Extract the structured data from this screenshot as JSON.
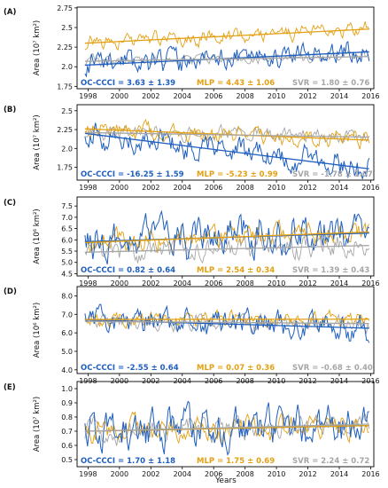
{
  "colors": {
    "OC-CCCI": "#1f5fbf",
    "MLP": "#e3a012",
    "SVR": "#a6a6a6"
  },
  "xlabel": "Years",
  "chart_data": [
    {
      "type": "line",
      "panel": "(A)",
      "ylabel": "Area (10⁷ km²)",
      "xlim": [
        1997.3,
        2016.2
      ],
      "ylim": [
        1.72,
        2.76
      ],
      "yticks": [
        "1.75",
        "2.0",
        "2.25",
        "2.5",
        "2.75"
      ],
      "yticks_val": [
        1.75,
        2.0,
        2.25,
        2.5,
        2.75
      ],
      "xticks": [
        "1998",
        "2000",
        "2002",
        "2004",
        "2006",
        "2008",
        "2010",
        "2012",
        "2014",
        "2016"
      ],
      "series": [
        {
          "name": "OC-CCCI",
          "annotation": "OC-CCCI = 3.63 ± 1.39",
          "trend": [
            2.02,
            2.19
          ],
          "base": 2.05,
          "amp": 0.11,
          "seed": 11
        },
        {
          "name": "MLP",
          "annotation": "MLP = 4.43 ± 1.06",
          "trend": [
            2.3,
            2.48
          ],
          "base": 2.33,
          "amp": 0.07,
          "seed": 23
        },
        {
          "name": "SVR",
          "annotation": "SVR = 1.80 ± 0.76",
          "trend": [
            2.07,
            2.13
          ],
          "base": 2.05,
          "amp": 0.05,
          "seed": 37
        }
      ]
    },
    {
      "type": "line",
      "panel": "(B)",
      "ylabel": "Area (10⁷ km²)",
      "xlim": [
        1997.3,
        2016.2
      ],
      "ylim": [
        1.58,
        2.58
      ],
      "yticks": [
        "1.75",
        "2.0",
        "2.25",
        "2.5"
      ],
      "yticks_val": [
        1.75,
        2.0,
        2.25,
        2.5
      ],
      "xticks": [
        "1998",
        "2000",
        "2002",
        "2004",
        "2006",
        "2008",
        "2010",
        "2012",
        "2014",
        "2016"
      ],
      "series": [
        {
          "name": "OC-CCCI",
          "annotation": "OC-CCCI = -16.25 ± 1.59",
          "trend": [
            2.2,
            1.73
          ],
          "base": 2.05,
          "amp": 0.13,
          "seed": 41
        },
        {
          "name": "MLP",
          "annotation": "MLP = -5.23 ± 0.99",
          "trend": [
            2.26,
            2.11
          ],
          "base": 2.15,
          "amp": 0.08,
          "seed": 53
        },
        {
          "name": "SVR",
          "annotation": "SVR = -1.78 ± 1.07",
          "trend": [
            2.21,
            2.15
          ],
          "base": 2.12,
          "amp": 0.07,
          "seed": 67
        }
      ]
    },
    {
      "type": "line",
      "panel": "(C)",
      "ylabel": "Area (10⁶ km²)",
      "xlim": [
        1997.3,
        2016.2
      ],
      "ylim": [
        4.4,
        7.9
      ],
      "yticks": [
        "4.5",
        "5.0",
        "5.5",
        "6.0",
        "6.5",
        "7.0",
        "7.5"
      ],
      "yticks_val": [
        4.5,
        5.0,
        5.5,
        6.0,
        6.5,
        7.0,
        7.5
      ],
      "xticks": [
        "1998",
        "2000",
        "2002",
        "2004",
        "2006",
        "2008",
        "2010",
        "2012",
        "2014",
        "2016"
      ],
      "series": [
        {
          "name": "OC-CCCI",
          "annotation": "OC-CCCI = 0.82 ± 0.64",
          "trend": [
            5.92,
            6.3
          ],
          "base": 6.0,
          "amp": 0.65,
          "seed": 71
        },
        {
          "name": "MLP",
          "annotation": "MLP = 2.54 ± 0.34",
          "trend": [
            5.88,
            6.35
          ],
          "base": 6.0,
          "amp": 0.35,
          "seed": 83
        },
        {
          "name": "SVR",
          "annotation": "SVR = 1.39 ± 0.43",
          "trend": [
            5.45,
            5.75
          ],
          "base": 5.55,
          "amp": 0.35,
          "seed": 97
        }
      ]
    },
    {
      "type": "line",
      "panel": "(D)",
      "ylabel": "Area (10⁶ km²)",
      "xlim": [
        1997.3,
        2016.2
      ],
      "ylim": [
        3.8,
        8.5
      ],
      "yticks": [
        "4.0",
        "5.0",
        "6.0",
        "7.0",
        "8.0"
      ],
      "yticks_val": [
        4.0,
        5.0,
        6.0,
        7.0,
        8.0
      ],
      "xticks": [
        "1998",
        "2000",
        "2002",
        "2004",
        "2006",
        "2008",
        "2010",
        "2012",
        "2014",
        "2016"
      ],
      "series": [
        {
          "name": "OC-CCCI",
          "annotation": "OC-CCCI = -2.55 ± 0.64",
          "trend": [
            6.7,
            6.25
          ],
          "base": 6.45,
          "amp": 0.55,
          "seed": 101
        },
        {
          "name": "MLP",
          "annotation": "MLP = 0.07 ± 0.36",
          "trend": [
            6.72,
            6.74
          ],
          "base": 6.7,
          "amp": 0.3,
          "seed": 113
        },
        {
          "name": "SVR",
          "annotation": "SVR = -0.68 ± 0.40",
          "trend": [
            6.62,
            6.5
          ],
          "base": 6.5,
          "amp": 0.3,
          "seed": 127
        }
      ]
    },
    {
      "type": "line",
      "panel": "(E)",
      "ylabel": "Area (10⁷ km²)",
      "xlim": [
        1997.3,
        2016.2
      ],
      "ylim": [
        0.45,
        1.05
      ],
      "yticks": [
        "0.5",
        "0.6",
        "0.7",
        "0.8",
        "0.9",
        "1.0"
      ],
      "yticks_val": [
        0.5,
        0.6,
        0.7,
        0.8,
        0.9,
        1.0
      ],
      "xticks": [
        "1998",
        "2000",
        "2002",
        "2004",
        "2006",
        "2008",
        "2010",
        "2012",
        "2014",
        "2016"
      ],
      "series": [
        {
          "name": "OC-CCCI",
          "annotation": "OC-CCCI = 1.70 ± 1.18",
          "trend": [
            0.7,
            0.74
          ],
          "base": 0.72,
          "amp": 0.1,
          "seed": 131
        },
        {
          "name": "MLP",
          "annotation": "MLP = 1.75 ± 0.69",
          "trend": [
            0.7,
            0.74
          ],
          "base": 0.72,
          "amp": 0.06,
          "seed": 139
        },
        {
          "name": "SVR",
          "annotation": "SVR = 2.24 ± 0.72",
          "trend": [
            0.7,
            0.75
          ],
          "base": 0.72,
          "amp": 0.06,
          "seed": 149
        }
      ]
    }
  ]
}
